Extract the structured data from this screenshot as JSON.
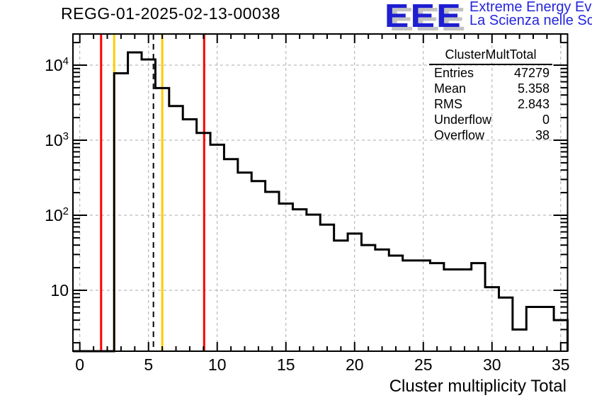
{
  "page": {
    "title": "REGG-01-2025-02-13-00038"
  },
  "logo": {
    "acronym": "EEE",
    "line1": "Extreme Energy Events",
    "line2": "La Scienza nelle Scuole",
    "color": "#2525dd"
  },
  "stats": {
    "title": "ClusterMultTotal",
    "rows": [
      {
        "label": "Entries",
        "value": "47279"
      },
      {
        "label": "Mean",
        "value": "5.358"
      },
      {
        "label": "RMS",
        "value": "2.843"
      },
      {
        "label": "Underflow",
        "value": "0"
      },
      {
        "label": "Overflow",
        "value": "38"
      }
    ]
  },
  "chart_data": {
    "type": "bar",
    "subtype": "histogram-step-outline",
    "title": "REGG-01-2025-02-13-00038",
    "xlabel": "Cluster multiplicity Total",
    "ylabel": "",
    "y_scale": "log",
    "x_range": [
      -0.5,
      35.5
    ],
    "y_range": [
      1.55,
      26000
    ],
    "bin_width": 1,
    "grid": "dashed-gray-on-major-ticks",
    "legend": "none",
    "x_ticks": [
      0,
      5,
      10,
      15,
      20,
      25,
      30,
      35
    ],
    "x_minor_tick_step": 1,
    "y_ticks": [
      "10",
      "10^2",
      "10^3",
      "10^4"
    ],
    "bin_centers": [
      0,
      1,
      2,
      3,
      4,
      5,
      6,
      7,
      8,
      9,
      10,
      11,
      12,
      13,
      14,
      15,
      16,
      17,
      18,
      19,
      20,
      21,
      22,
      23,
      24,
      25,
      26,
      27,
      28,
      29,
      30,
      31,
      32,
      33,
      34,
      35
    ],
    "values": [
      0,
      0,
      0,
      7800,
      14800,
      11900,
      4950,
      2850,
      1900,
      1250,
      870,
      560,
      370,
      285,
      205,
      143,
      120,
      102,
      75,
      46,
      57,
      40,
      35,
      29,
      25,
      25,
      23,
      19,
      19,
      23,
      11,
      8,
      3,
      6,
      6,
      4
    ],
    "line_color": "#000000",
    "marker_lines": [
      {
        "x": 1.55,
        "color": "#ff0000",
        "style": "solid",
        "name": "red-low-threshold"
      },
      {
        "x": 2.5,
        "color": "#ffcc00",
        "style": "solid",
        "name": "yellow-low-threshold"
      },
      {
        "x": 5.358,
        "color": "#000000",
        "style": "dashed",
        "name": "mean-line"
      },
      {
        "x": 6.0,
        "color": "#ffcc00",
        "style": "solid",
        "name": "yellow-high-threshold"
      },
      {
        "x": 9.05,
        "color": "#ff0000",
        "style": "solid",
        "name": "red-high-threshold"
      }
    ],
    "stats_box": {
      "title": "ClusterMultTotal",
      "entries": 47279,
      "mean": 5.358,
      "rms": 2.843,
      "underflow": 0,
      "overflow": 38
    }
  }
}
